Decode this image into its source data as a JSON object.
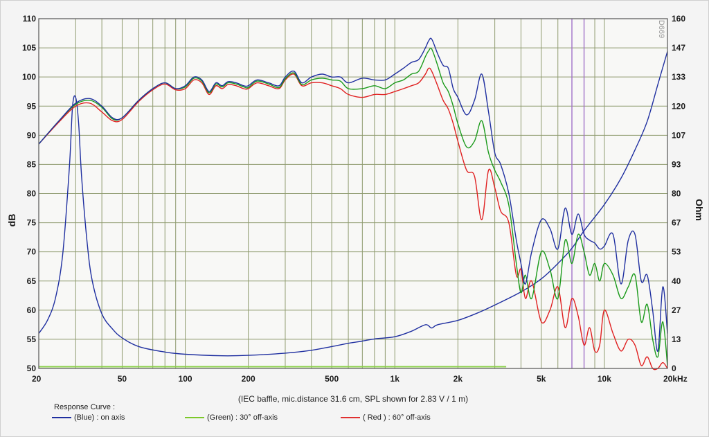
{
  "chart_data": {
    "type": "line",
    "watermark": "D669",
    "xlabel_note": "(IEC baffle, mic.distance 31.6 cm, SPL shown for 2.83 V / 1 m)",
    "ylabel_left": "dB",
    "ylabel_right": "Ohm",
    "x_scale": "log",
    "xlim": [
      20,
      20000
    ],
    "ylim_left": [
      50,
      110
    ],
    "ylim_right": [
      0,
      160
    ],
    "x_ticks": [
      {
        "v": 20,
        "label": "20"
      },
      {
        "v": 50,
        "label": "50"
      },
      {
        "v": 100,
        "label": "100"
      },
      {
        "v": 200,
        "label": "200"
      },
      {
        "v": 500,
        "label": "500"
      },
      {
        "v": 1000,
        "label": "1k"
      },
      {
        "v": 2000,
        "label": "2k"
      },
      {
        "v": 5000,
        "label": "5k"
      },
      {
        "v": 10000,
        "label": "10k"
      },
      {
        "v": 20000,
        "label": "20kHz"
      }
    ],
    "y_ticks_left": [
      "50",
      "55",
      "60",
      "65",
      "70",
      "75",
      "80",
      "85",
      "90",
      "95",
      "100",
      "105",
      "110"
    ],
    "y_ticks_right": [
      "0",
      "13",
      "27",
      "40",
      "53",
      "67",
      "80",
      "93",
      "107",
      "120",
      "133",
      "147",
      "160"
    ],
    "legend_title": "Response Curve :",
    "legend": [
      {
        "label": "(Blue)  : on axis",
        "color": "#1f2fa0"
      },
      {
        "label": "(Green) : 30° off-axis",
        "color": "#7cc82a"
      },
      {
        "label": "( Red ) : 60° off-axis",
        "color": "#e03030"
      }
    ],
    "grid": true,
    "colors": {
      "blue": "#1f2fa0",
      "green": "#1a9a1a",
      "red": "#e02020",
      "grid": "#8e9a6e",
      "violet_grid": "#a070c8"
    },
    "series": [
      {
        "name": "(Blue)  : on axis",
        "axis": "left",
        "color": "#1f2fa0",
        "x": [
          20,
          25,
          30,
          35,
          40,
          45,
          50,
          60,
          70,
          80,
          90,
          100,
          110,
          120,
          130,
          140,
          150,
          160,
          175,
          190,
          200,
          220,
          250,
          280,
          300,
          330,
          360,
          400,
          450,
          500,
          550,
          600,
          700,
          800,
          900,
          1000,
          1100,
          1200,
          1300,
          1400,
          1450,
          1500,
          1600,
          1700,
          1800,
          1900,
          2000,
          2200,
          2400,
          2600,
          2800,
          3000,
          3200,
          3500,
          3800,
          4000,
          4200,
          4500,
          5000,
          5500,
          6000,
          6500,
          7000,
          7500,
          8000,
          8500,
          9000,
          9500,
          10000,
          11000,
          12000,
          13000,
          14000,
          15000,
          16000,
          17000,
          18000,
          19000,
          20000
        ],
        "y": [
          88.5,
          92.5,
          95.5,
          96.3,
          95.0,
          93.0,
          93.0,
          96.0,
          98.0,
          99.0,
          98.0,
          98.5,
          100.0,
          99.5,
          97.5,
          99.0,
          98.5,
          99.2,
          99.0,
          98.5,
          98.5,
          99.5,
          99.0,
          98.5,
          100.0,
          101.0,
          99.0,
          100.0,
          100.5,
          100.0,
          100.0,
          99.0,
          99.8,
          99.5,
          99.5,
          100.5,
          101.5,
          102.5,
          103.0,
          105.0,
          106.2,
          106.5,
          104.0,
          102.0,
          101.5,
          98.0,
          96.5,
          93.5,
          96.0,
          100.5,
          94.0,
          87.0,
          85.0,
          80.0,
          72.0,
          68.0,
          64.5,
          70.0,
          75.5,
          74.0,
          70.5,
          77.5,
          73.0,
          76.5,
          73.0,
          72.0,
          71.5,
          70.5,
          71.0,
          73.0,
          64.5,
          72.0,
          73.0,
          65.0,
          66.0,
          60.0,
          53.0,
          64.0,
          56.0
        ]
      },
      {
        "name": "(Green) : 30° off-axis",
        "axis": "left",
        "color": "#1a9a1a",
        "x": [
          20,
          25,
          30,
          35,
          40,
          45,
          50,
          60,
          70,
          80,
          90,
          100,
          110,
          120,
          130,
          140,
          150,
          160,
          175,
          190,
          200,
          220,
          250,
          280,
          300,
          330,
          360,
          400,
          450,
          500,
          550,
          600,
          700,
          800,
          900,
          1000,
          1100,
          1200,
          1300,
          1400,
          1450,
          1500,
          1600,
          1700,
          1800,
          1900,
          2000,
          2200,
          2400,
          2600,
          2800,
          3000,
          3200,
          3500,
          3800,
          4000,
          4200,
          4500,
          5000,
          5500,
          6000,
          6500,
          7000,
          7500,
          8000,
          8500,
          9000,
          9500,
          10000,
          11000,
          12000,
          13000,
          14000,
          15000,
          16000,
          17000,
          18000,
          19000,
          20000
        ],
        "y": [
          88.5,
          92.5,
          95.3,
          96.0,
          94.8,
          92.8,
          93.0,
          96.0,
          98.0,
          99.0,
          98.0,
          98.3,
          99.8,
          99.3,
          97.3,
          98.8,
          98.3,
          99.0,
          98.8,
          98.3,
          98.2,
          99.3,
          98.8,
          98.2,
          99.7,
          100.7,
          98.7,
          99.5,
          99.8,
          99.5,
          99.3,
          98.0,
          98.0,
          98.5,
          98.0,
          99.0,
          99.5,
          100.5,
          101.0,
          103.5,
          104.5,
          104.8,
          102.0,
          99.0,
          97.5,
          95.0,
          92.0,
          88.0,
          89.0,
          92.5,
          87.0,
          84.0,
          82.0,
          78.0,
          68.0,
          63.0,
          66.0,
          62.0,
          70.0,
          67.0,
          62.0,
          72.0,
          68.0,
          73.0,
          70.0,
          66.0,
          68.0,
          65.0,
          68.0,
          66.0,
          62.0,
          64.0,
          66.0,
          58.0,
          61.0,
          55.0,
          52.0,
          58.0,
          50.5
        ]
      },
      {
        "name": "( Red ) : 60° off-axis",
        "axis": "left",
        "color": "#e02020",
        "x": [
          20,
          25,
          30,
          35,
          40,
          45,
          50,
          60,
          70,
          80,
          90,
          100,
          110,
          120,
          130,
          140,
          150,
          160,
          175,
          190,
          200,
          220,
          250,
          280,
          300,
          330,
          360,
          400,
          450,
          500,
          550,
          600,
          700,
          800,
          900,
          1000,
          1100,
          1200,
          1300,
          1400,
          1450,
          1500,
          1600,
          1700,
          1800,
          1900,
          2000,
          2200,
          2400,
          2600,
          2800,
          3000,
          3200,
          3500,
          3800,
          4000,
          4200,
          4500,
          5000,
          5500,
          6000,
          6500,
          7000,
          7500,
          8000,
          8500,
          9000,
          9500,
          10000,
          11000,
          12000,
          13000,
          14000,
          15000,
          16000,
          17000,
          18000,
          19000,
          20000
        ],
        "y": [
          88.5,
          92.3,
          95.0,
          95.5,
          94.0,
          92.5,
          92.7,
          95.8,
          97.8,
          98.8,
          97.8,
          98.0,
          99.5,
          99.0,
          97.0,
          98.5,
          98.0,
          98.7,
          98.5,
          98.0,
          98.0,
          99.0,
          98.5,
          98.0,
          99.5,
          100.5,
          98.5,
          99.0,
          99.0,
          98.5,
          98.0,
          97.0,
          96.5,
          97.0,
          97.0,
          97.5,
          98.0,
          98.5,
          99.0,
          100.5,
          101.5,
          101.0,
          98.5,
          96.0,
          94.5,
          92.0,
          89.0,
          84.0,
          83.0,
          75.5,
          84.0,
          81.0,
          77.0,
          75.0,
          66.0,
          67.0,
          62.0,
          65.0,
          58.0,
          60.0,
          64.0,
          57.0,
          62.0,
          59.0,
          54.0,
          57.0,
          53.0,
          54.0,
          60.0,
          56.0,
          53.0,
          55.0,
          54.0,
          50.5,
          52.0,
          50.0,
          50.0,
          51.0,
          50.0
        ]
      },
      {
        "name": "",
        "axis": "right",
        "color": "#1f2fa0",
        "x": [
          20,
          22,
          24,
          26,
          28,
          29,
          30,
          31,
          32,
          34,
          36,
          40,
          45,
          50,
          60,
          80,
          100,
          150,
          200,
          300,
          400,
          500,
          600,
          700,
          800,
          1000,
          1200,
          1400,
          1500,
          1600,
          2000,
          2500,
          3000,
          4000,
          5000,
          6000,
          7000,
          8000,
          10000,
          12000,
          14000,
          16000,
          18000,
          20000
        ],
        "y": [
          16,
          22,
          32,
          52,
          92,
          120,
          124,
          112,
          88,
          58,
          40,
          25,
          18,
          14,
          10,
          7.5,
          6.5,
          5.8,
          6.0,
          7.0,
          8.3,
          10,
          11.5,
          12.5,
          13.5,
          14.5,
          17,
          20,
          18.5,
          20,
          22,
          25.5,
          29,
          35,
          41,
          48,
          55,
          63,
          75,
          87,
          100,
          113,
          130,
          145
        ]
      }
    ],
    "baseline": {
      "x_start": 20,
      "x_end": 3400,
      "y": 50.3,
      "color": "#8bd14a"
    }
  }
}
